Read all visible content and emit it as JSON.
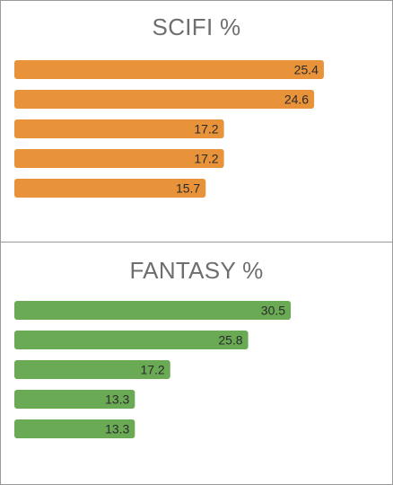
{
  "chart_data": [
    {
      "type": "bar",
      "orientation": "horizontal",
      "title": "SCIFI %",
      "values": [
        25.4,
        24.6,
        17.2,
        17.2,
        15.7
      ],
      "color": "#e8923a"
    },
    {
      "type": "bar",
      "orientation": "horizontal",
      "title": "FANTASY %",
      "values": [
        30.5,
        25.8,
        17.2,
        13.3,
        13.3
      ],
      "color": "#6aaa55"
    }
  ]
}
